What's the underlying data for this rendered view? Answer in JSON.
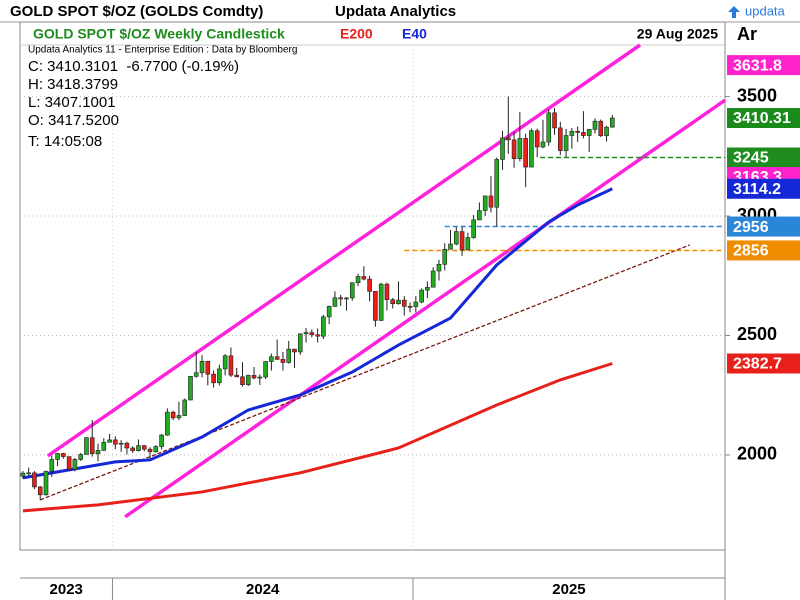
{
  "chart_data": {
    "type": "candlestick",
    "header": {
      "symbol": "GOLD SPOT $/OZ (GOLDS Comdty)",
      "brand": "Updata Analytics",
      "logo": "updata"
    },
    "title": "GOLD SPOT $/OZ Weekly Candlestick",
    "date": "29 Aug 2025",
    "axis_header": "Ar",
    "info": {
      "source": "Updata Analytics 11 - Enterprise Edition : Data by Bloomberg",
      "close": "C: 3410.3101  -6.7700 (-0.19%)",
      "high": "H: 3418.3799",
      "low": "L: 3407.1001",
      "open": "O: 3417.5200",
      "time": "T: 14:05:08"
    },
    "up_color": "#22aa22",
    "down_color": "#e8201a",
    "ylim": [
      1602,
      3716
    ],
    "yticks": [
      2000,
      2500,
      3000,
      3500
    ],
    "grid": true,
    "xlim": [
      -0.5,
      121.5
    ],
    "year_labels": [
      "2023",
      "2024",
      "2025"
    ],
    "year_starts": [
      15.5,
      67.5
    ],
    "ohlc": [
      [
        1911,
        1933,
        1901,
        1924
      ],
      [
        1924,
        1947,
        1913,
        1925
      ],
      [
        1925,
        1932,
        1857,
        1866
      ],
      [
        1866,
        1870,
        1810,
        1833
      ],
      [
        1833,
        1933,
        1830,
        1932
      ],
      [
        1932,
        1997,
        1908,
        1981
      ],
      [
        1981,
        2009,
        1953,
        2006
      ],
      [
        2006,
        2009,
        1984,
        1993
      ],
      [
        1993,
        1993,
        1932,
        1940
      ],
      [
        1940,
        1988,
        1931,
        1981
      ],
      [
        1981,
        2008,
        1975,
        2002
      ],
      [
        2002,
        2075,
        2001,
        2072
      ],
      [
        2072,
        2146,
        1993,
        2005
      ],
      [
        2005,
        2047,
        1973,
        2019
      ],
      [
        2019,
        2070,
        2017,
        2053
      ],
      [
        2053,
        2088,
        2052,
        2063
      ],
      [
        2063,
        2078,
        2024,
        2045
      ],
      [
        2045,
        2062,
        2013,
        2049
      ],
      [
        2049,
        2055,
        2002,
        2029
      ],
      [
        2029,
        2036,
        2009,
        2018
      ],
      [
        2018,
        2065,
        2014,
        2039
      ],
      [
        2039,
        2041,
        2015,
        2024
      ],
      [
        2024,
        2032,
        1984,
        2013
      ],
      [
        2013,
        2041,
        2010,
        2035
      ],
      [
        2035,
        2088,
        2023,
        2083
      ],
      [
        2083,
        2195,
        2080,
        2179
      ],
      [
        2179,
        2185,
        2146,
        2155
      ],
      [
        2155,
        2223,
        2146,
        2165
      ],
      [
        2165,
        2236,
        2163,
        2230
      ],
      [
        2230,
        2330,
        2228,
        2329
      ],
      [
        2329,
        2432,
        2324,
        2344
      ],
      [
        2344,
        2418,
        2325,
        2392
      ],
      [
        2392,
        2394,
        2291,
        2338
      ],
      [
        2338,
        2353,
        2282,
        2302
      ],
      [
        2302,
        2378,
        2291,
        2360
      ],
      [
        2360,
        2422,
        2333,
        2415
      ],
      [
        2415,
        2450,
        2326,
        2334
      ],
      [
        2334,
        2364,
        2325,
        2327
      ],
      [
        2327,
        2388,
        2286,
        2294
      ],
      [
        2294,
        2336,
        2288,
        2333
      ],
      [
        2333,
        2368,
        2317,
        2322
      ],
      [
        2322,
        2337,
        2293,
        2326
      ],
      [
        2326,
        2392,
        2318,
        2391
      ],
      [
        2391,
        2424,
        2353,
        2411
      ],
      [
        2411,
        2483,
        2398,
        2400
      ],
      [
        2400,
        2431,
        2353,
        2387
      ],
      [
        2387,
        2477,
        2382,
        2443
      ],
      [
        2443,
        2444,
        2364,
        2431
      ],
      [
        2431,
        2509,
        2419,
        2507
      ],
      [
        2507,
        2531,
        2470,
        2512
      ],
      [
        2512,
        2525,
        2492,
        2503
      ],
      [
        2503,
        2529,
        2471,
        2497
      ],
      [
        2497,
        2586,
        2485,
        2578
      ],
      [
        2578,
        2625,
        2547,
        2622
      ],
      [
        2622,
        2685,
        2620,
        2658
      ],
      [
        2658,
        2670,
        2624,
        2653
      ],
      [
        2653,
        2661,
        2604,
        2657
      ],
      [
        2657,
        2722,
        2646,
        2721
      ],
      [
        2721,
        2758,
        2707,
        2747
      ],
      [
        2747,
        2790,
        2731,
        2736
      ],
      [
        2736,
        2750,
        2643,
        2685
      ],
      [
        2685,
        2686,
        2537,
        2563
      ],
      [
        2563,
        2721,
        2561,
        2715
      ],
      [
        2715,
        2721,
        2605,
        2650
      ],
      [
        2650,
        2657,
        2613,
        2633
      ],
      [
        2633,
        2726,
        2629,
        2648
      ],
      [
        2648,
        2665,
        2583,
        2622
      ],
      [
        2622,
        2638,
        2597,
        2621
      ],
      [
        2621,
        2665,
        2596,
        2640
      ],
      [
        2640,
        2697,
        2635,
        2690
      ],
      [
        2690,
        2726,
        2656,
        2702
      ],
      [
        2702,
        2786,
        2701,
        2770
      ],
      [
        2770,
        2817,
        2730,
        2798
      ],
      [
        2798,
        2886,
        2772,
        2861
      ],
      [
        2861,
        2942,
        2860,
        2883
      ],
      [
        2883,
        2954,
        2877,
        2935
      ],
      [
        2935,
        2956,
        2833,
        2858
      ],
      [
        2858,
        2930,
        2857,
        2910
      ],
      [
        2910,
        3004,
        2905,
        2984
      ],
      [
        2984,
        3057,
        2982,
        3023
      ],
      [
        3023,
        3086,
        3000,
        3084
      ],
      [
        3084,
        3167,
        3015,
        3037
      ],
      [
        3037,
        3245,
        2957,
        3237
      ],
      [
        3237,
        3357,
        3193,
        3327
      ],
      [
        3327,
        3500,
        3260,
        3319
      ],
      [
        3319,
        3353,
        3202,
        3240
      ],
      [
        3240,
        3435,
        3229,
        3325
      ],
      [
        3325,
        3345,
        3121,
        3205
      ],
      [
        3205,
        3366,
        3205,
        3357
      ],
      [
        3357,
        3366,
        3246,
        3289
      ],
      [
        3289,
        3403,
        3284,
        3310
      ],
      [
        3310,
        3446,
        3294,
        3432
      ],
      [
        3432,
        3452,
        3340,
        3369
      ],
      [
        3369,
        3394,
        3255,
        3274
      ],
      [
        3274,
        3365,
        3248,
        3337
      ],
      [
        3337,
        3369,
        3282,
        3355
      ],
      [
        3355,
        3375,
        3310,
        3350
      ],
      [
        3350,
        3439,
        3325,
        3337
      ],
      [
        3337,
        3363,
        3268,
        3363
      ],
      [
        3363,
        3409,
        3346,
        3397
      ],
      [
        3397,
        3404,
        3331,
        3336
      ],
      [
        3336,
        3378,
        3312,
        3372
      ],
      [
        3372,
        3423,
        3370,
        3410.31
      ]
    ],
    "series": [
      {
        "name": "E200",
        "color": "#e8201a",
        "x": [
          0,
          13,
          31,
          48,
          65,
          82,
          93,
          102
        ],
        "values": [
          1766,
          1791,
          1845,
          1925,
          2029,
          2209,
          2314,
          2382.7
        ]
      },
      {
        "name": "E40",
        "color": "#1428d8",
        "x": [
          0,
          6,
          16,
          22,
          31,
          39,
          48,
          57,
          65,
          74,
          82,
          91,
          96,
          102
        ],
        "values": [
          1904,
          1929,
          1971,
          1979,
          2075,
          2188,
          2251,
          2347,
          2460,
          2573,
          2795,
          2975,
          3046,
          3114.2
        ]
      }
    ],
    "trendlines": [
      {
        "color": "#ff22dd",
        "dash": false,
        "x": [
          4.3,
          106.8
        ],
        "values": [
          1996,
          3716
        ]
      },
      {
        "color": "#ff22dd",
        "dash": false,
        "x": [
          17.7,
          121.5
        ],
        "values": [
          1741,
          3485
        ]
      },
      {
        "color": "#7a1a10",
        "dash": true,
        "x": [
          3,
          115.4
        ],
        "values": [
          1812,
          2879
        ]
      }
    ],
    "levels": [
      {
        "value": 3245,
        "color": "#1e8c1e",
        "start": 89.5
      },
      {
        "value": 2956,
        "color": "#2a86d8",
        "start": 73
      },
      {
        "value": 2856,
        "color": "#f08c00",
        "start": 66
      }
    ],
    "price_labels": [
      {
        "value": 3631.8,
        "color": "#ff22cc"
      },
      {
        "value": 3410.31,
        "color": "#1a8a1a"
      },
      {
        "value": 3163.3,
        "color": "#ff22cc"
      },
      {
        "value": 3114.2,
        "color": "#1428d8"
      },
      {
        "value": 2382.7,
        "color": "#e8201a"
      }
    ]
  }
}
